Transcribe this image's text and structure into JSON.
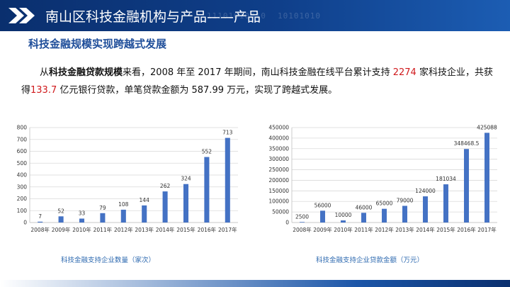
{
  "header": {
    "title": "南山区科技金融机构与产品——产品",
    "deco_text_1": "11101010010",
    "deco_text_2": "10101010"
  },
  "subtitle": "科技金融规模实现跨越式发展",
  "paragraph": {
    "part1": "从",
    "bold1": "科技金融贷款规模",
    "part2": "来看，2008 年至 2017 年期间，南山科技金融在线平台累计支持 ",
    "num1": "2274",
    "part3": " 家科技企业，共获得",
    "num2": "133.7",
    "part4": " 亿元银行贷款，单笔贷款金额为 587.99 万元，实现了跨越式发展。"
  },
  "colors": {
    "bar": "#4472c4",
    "header": "#0f3f8a",
    "highlight": "#d0191c",
    "caption": "#2e6ab0"
  },
  "chart_data": [
    {
      "type": "bar",
      "categories": [
        "2008年",
        "2009年",
        "2010年",
        "2011年",
        "2012年",
        "2013年",
        "2014年",
        "2015年",
        "2016年",
        "2017年"
      ],
      "values": [
        7,
        52,
        33,
        79,
        108,
        144,
        262,
        324,
        552,
        713
      ],
      "labels": [
        "7",
        "52",
        "33",
        "79",
        "108",
        "144",
        "262",
        "324",
        "552",
        "713"
      ],
      "ylim": [
        0,
        800
      ],
      "yticks": [
        0,
        100,
        200,
        300,
        400,
        500,
        600,
        700,
        800
      ],
      "grid": true,
      "caption": "科技金融支持企业数量（家次）"
    },
    {
      "type": "bar",
      "categories": [
        "2008年",
        "2009年",
        "2010年",
        "2011年",
        "2012年",
        "2013年",
        "2014年",
        "2015年",
        "2016年",
        "2017年"
      ],
      "values": [
        2500,
        56000,
        10000,
        46000,
        65000,
        79000,
        124000,
        181034,
        348468.5,
        425088
      ],
      "labels": [
        "2500",
        "56000",
        "10000",
        "46000",
        "65000",
        "79000",
        "124000",
        "181034",
        "348468.5",
        "425088"
      ],
      "ylim": [
        0,
        450000
      ],
      "yticks": [
        0,
        50000,
        100000,
        150000,
        200000,
        250000,
        300000,
        350000,
        400000,
        450000
      ],
      "grid": true,
      "caption": "科技金融支持企业贷款金额（万元）"
    }
  ]
}
